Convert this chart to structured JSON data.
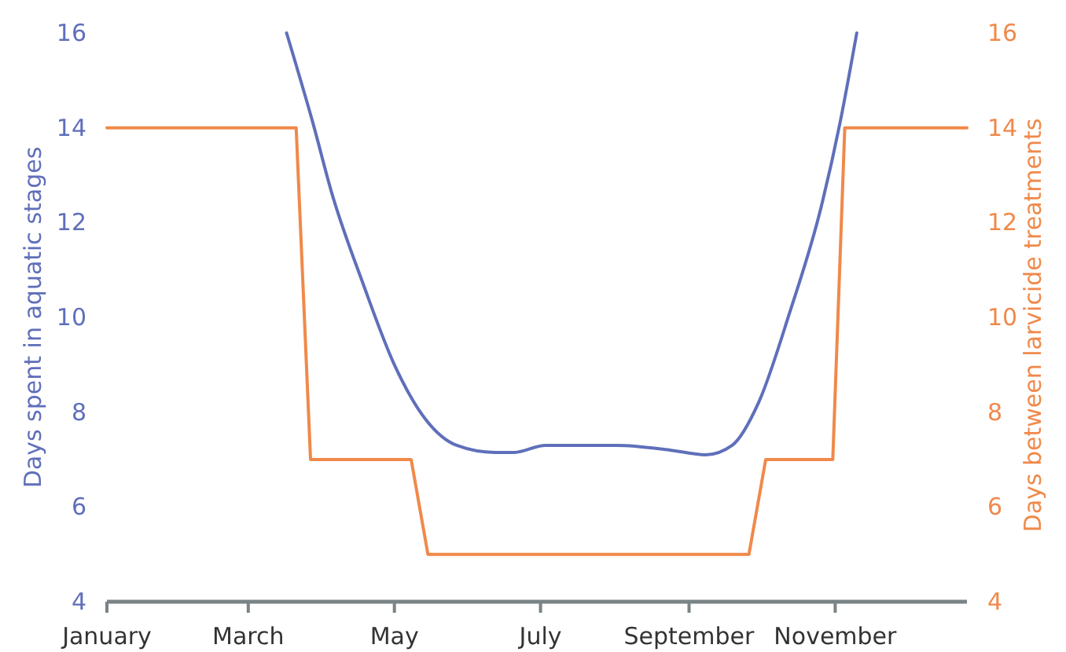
{
  "chart_data": {
    "type": "line",
    "ylabel": "Days spent in aquatic stages",
    "y2label": "Days between larvicide treatments",
    "xlim": [
      "--01-01",
      "--12-26"
    ],
    "xticks": [
      {
        "value": "--01-01",
        "label": "January"
      },
      {
        "value": "--03-01",
        "label": "March"
      },
      {
        "value": "--05-01",
        "label": "May"
      },
      {
        "value": "--07-01",
        "label": "July"
      },
      {
        "value": "--09-01",
        "label": "September"
      },
      {
        "value": "--11-01",
        "label": "November"
      }
    ],
    "ylim": [
      4,
      16
    ],
    "yticks": [
      4,
      6,
      8,
      10,
      12,
      14,
      16
    ],
    "y2lim": [
      4,
      16
    ],
    "y2ticks": [
      4,
      6,
      8,
      10,
      12,
      14,
      16
    ],
    "grid": false,
    "marker": "none",
    "line_style": "solid",
    "series": [
      {
        "color": "#5f6fba",
        "x": [
          "--03-17",
          "--03-28",
          "--04-05",
          "--04-18",
          "--05-01",
          "--05-14",
          "--05-27",
          "--06-12",
          "--06-20",
          "--07-03",
          "--08-02",
          "--08-24",
          "--09-08",
          "--09-19",
          "--09-30",
          "--10-13",
          "--10-26",
          "--11-03",
          "--11-10"
        ],
        "values": [
          16,
          14.1,
          12.6,
          10.7,
          9,
          7.85,
          7.3,
          7.15,
          7.15,
          7.3,
          7.3,
          7.2,
          7.1,
          7.3,
          8.2,
          10.1,
          12.3,
          14.1,
          16
        ]
      },
      {
        "color": "#f0894a",
        "axis": "y2",
        "x": [
          "--01-01",
          "--03-21",
          "--03-27",
          "--05-08",
          "--05-15",
          "--09-26",
          "--10-03",
          "--10-31",
          "--11-05",
          "--12-26"
        ],
        "values": [
          14,
          14,
          7,
          7,
          5,
          5,
          7,
          7,
          14,
          14
        ]
      }
    ]
  }
}
